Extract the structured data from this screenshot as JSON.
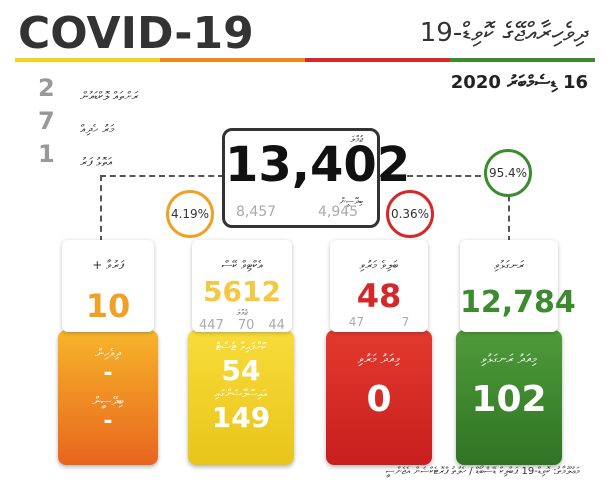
{
  "header": {
    "title": "COVID-19",
    "title_dv": "ދިވެހިރާއްޖޭގެ ކޮވިޑް-19",
    "date": "16 ޑިސެމްބަރު 2020"
  },
  "left_stats": [
    {
      "value": "2",
      "label": "ރަށްތައް ލޮކްޑައުން"
    },
    {
      "value": "7",
      "label": "މަރު ހެދިއް"
    },
    {
      "value": "1",
      "label": "އަތޮޅު ފަރު"
    }
  ],
  "total": {
    "label": "ޖުމްލަ",
    "value": "13,402",
    "local": "8,457",
    "foreign": "4,945",
    "foreign_label": "ބިދޭސީން"
  },
  "percents": [
    "4.19%",
    "0.36%",
    "95.4%"
  ],
  "cards": [
    {
      "title": "ފަރުވާ +",
      "value": "10",
      "bottom": [
        {
          "label": "ދިވެހިން",
          "value": "-"
        },
        {
          "label": "ބިދޭސީން",
          "value": "-"
        }
      ]
    },
    {
      "title": "އެކްޓިވް ކޭސް",
      "value": "5612",
      "small_label": "ޖުމްލަ",
      "subs": [
        "447",
        "70",
        "44"
      ],
      "bottom": [
        {
          "label": "ކޮށްފައިވާ ޓެސްޓް",
          "value": "54"
        },
        {
          "label": "އައިސޮލޭޝަންގައި",
          "value": "149"
        }
      ]
    },
    {
      "title": "ބަލިވެ މަރުވި",
      "value": "48",
      "subs": [
        "47",
        "7"
      ],
      "bottom": [
        {
          "label": "މިއަދު މަރުވި",
          "value": "0"
        }
      ]
    },
    {
      "title": "ރަނގަޅުވި",
      "value": "12,784",
      "bottom": [
        {
          "label": "މިއަދު ރަނގަޅުވި",
          "value": "102"
        }
      ]
    }
  ],
  "footer": "މަޢުލޫމާތު: ކޮވިޑް-19 ޕަބްލިކް ޑޭޝްބޯޑް / ހެލްތު ޕްރޮޓެކްޝަން އެޖެންސީ"
}
